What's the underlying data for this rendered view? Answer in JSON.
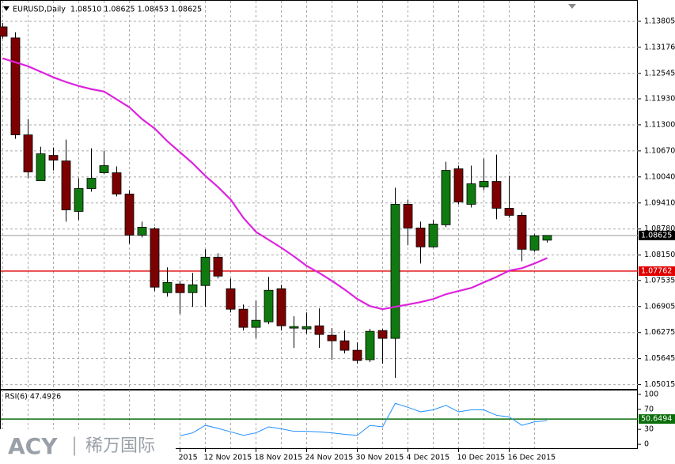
{
  "chart_data": [
    {
      "type": "candlestick",
      "title": "EURUSD,Daily",
      "title_values": "1.08510 1.08625 1.08453 1.08625",
      "categories": [
        null,
        null,
        null,
        null,
        null,
        null,
        null,
        null,
        null,
        null,
        null,
        null,
        null,
        null,
        "2015",
        null,
        "12 Nov 2015",
        null,
        null,
        null,
        "18 Nov 2015",
        null,
        null,
        null,
        "24 Nov 2015",
        null,
        null,
        null,
        "30 Nov 2015",
        null,
        null,
        null,
        "4 Dec 2015",
        null,
        null,
        null,
        "10 Dec 2015",
        null,
        null,
        null,
        "16 Dec 2015",
        null,
        null,
        null
      ],
      "open": [
        1.13671,
        1.13404,
        1.11057,
        1.0995,
        1.10561,
        1.10427,
        1.09206,
        1.09759,
        1.10141,
        1.10141,
        1.09626,
        1.08633,
        1.08786,
        1.0724,
        1.0745,
        1.0724,
        1.07412,
        1.08099,
        1.07336,
        1.0684,
        1.06401,
        1.06534,
        1.07336,
        1.06382,
        1.06363,
        1.06439,
        1.0621,
        1.06076,
        1.05847,
        1.05618,
        1.06324,
        1.06134,
        1.09378,
        1.08805,
        1.08347,
        1.08882,
        1.10236,
        1.09378,
        1.09797,
        1.09931,
        1.09282,
        1.09111,
        1.08271,
        1.0851
      ],
      "high": [
        1.13767,
        1.13538,
        1.11439,
        1.10771,
        1.10752,
        1.10943,
        1.10007,
        1.10733,
        1.10675,
        1.10294,
        1.09721,
        1.08958,
        1.08824,
        1.07851,
        1.07526,
        1.07717,
        1.0829,
        1.08194,
        1.07584,
        1.06954,
        1.07049,
        1.07622,
        1.07431,
        1.06668,
        1.06763,
        1.06859,
        1.06382,
        1.06324,
        1.06038,
        1.06363,
        1.06363,
        1.09778,
        1.09492,
        1.08958,
        1.08996,
        1.10408,
        1.10313,
        1.10313,
        1.10485,
        1.1058,
        1.10065,
        1.09187,
        1.08652,
        1.08625
      ],
      "low": [
        1.13385,
        1.10961,
        1.10007,
        1.0995,
        1.10198,
        1.08958,
        1.08996,
        1.09683,
        1.10103,
        1.09568,
        1.08423,
        1.08576,
        1.07279,
        1.07145,
        1.06725,
        1.06897,
        1.06897,
        1.07584,
        1.06763,
        1.06324,
        1.06134,
        1.06477,
        1.06324,
        1.05904,
        1.06248,
        1.05904,
        1.05618,
        1.05771,
        1.05523,
        1.05561,
        1.05523,
        1.05179,
        1.08385,
        1.07946,
        1.08328,
        1.08824,
        1.09378,
        1.09301,
        1.09721,
        1.09015,
        1.09053,
        1.08003,
        1.08233,
        1.08453
      ],
      "close": [
        1.13442,
        1.11057,
        1.1016,
        1.10599,
        1.10446,
        1.09244,
        1.09759,
        1.10007,
        1.10313,
        1.09626,
        1.08633,
        1.08824,
        1.07374,
        1.07488,
        1.0724,
        1.07431,
        1.08099,
        1.07641,
        1.0684,
        1.06401,
        1.06572,
        1.07298,
        1.06439,
        1.0642,
        1.0642,
        1.06229,
        1.06076,
        1.05847,
        1.05599,
        1.06305,
        1.06134,
        1.09378,
        1.08805,
        1.08347,
        1.08901,
        1.10198,
        1.09435,
        1.09874,
        1.09931,
        1.09282,
        1.09111,
        1.0829,
        1.08614,
        1.08625
      ],
      "up_color": "#0f7a0f",
      "down_color": "#7c0000",
      "ma": {
        "color": "#dd22dd",
        "values": [
          1.12908,
          1.12813,
          1.12717,
          1.12584,
          1.1245,
          1.12336,
          1.1224,
          1.12164,
          1.12107,
          1.11916,
          1.11725,
          1.11439,
          1.1121,
          1.10904,
          1.10637,
          1.1037,
          1.10065,
          1.09797,
          1.09492,
          1.09053,
          1.0871,
          1.08519,
          1.08328,
          1.08118,
          1.07889,
          1.07717,
          1.07526,
          1.07316,
          1.07087,
          1.06916,
          1.0684,
          1.06897,
          1.06954,
          1.07011,
          1.07087,
          1.07202,
          1.07279,
          1.07355,
          1.07488,
          1.07622,
          1.07774,
          1.07832,
          1.07946,
          1.0808
        ]
      },
      "hline": {
        "value": 1.07762,
        "color": "#e00000"
      },
      "last_price": 1.08625,
      "ylim": [
        1.04912,
        1.14301
      ],
      "yticks": [
        1.13805,
        1.13176,
        1.12545,
        {
          "value": 1.1193,
          "label": "1.11930"
        },
        {
          "value": 1.113,
          "label": "1.11300"
        },
        {
          "value": 1.1067,
          "label": "1.10670"
        },
        {
          "value": 1.1004,
          "label": "1.10040"
        },
        {
          "value": 1.0941,
          "label": "1.09410"
        },
        {
          "value": 1.0878,
          "label": "1.08780"
        },
        {
          "value": 1.0815,
          "label": "1.08150"
        },
        1.07535,
        1.06905,
        1.06275,
        1.05645,
        1.05015
      ],
      "grid": true
    },
    {
      "type": "line",
      "title": "RSI(6) 47.4926",
      "color": "#1e8fff",
      "values": [
        null,
        null,
        null,
        null,
        null,
        null,
        null,
        null,
        null,
        null,
        null,
        null,
        null,
        null,
        17,
        23,
        38,
        32,
        25,
        18,
        23,
        35,
        31,
        26,
        26,
        25,
        23,
        20,
        18,
        38,
        35,
        82,
        74,
        65,
        69,
        78,
        65,
        69,
        69,
        58,
        55,
        38,
        45,
        47.4926
      ],
      "level": 50.6494,
      "level_color": "#0a6e0a",
      "ylim": [
        -7.7,
        107.7
      ],
      "yticks": [
        100,
        70,
        30,
        0
      ]
    }
  ],
  "watermark": {
    "brand": "ACY",
    "separator": "|",
    "name": "稀万国际"
  }
}
